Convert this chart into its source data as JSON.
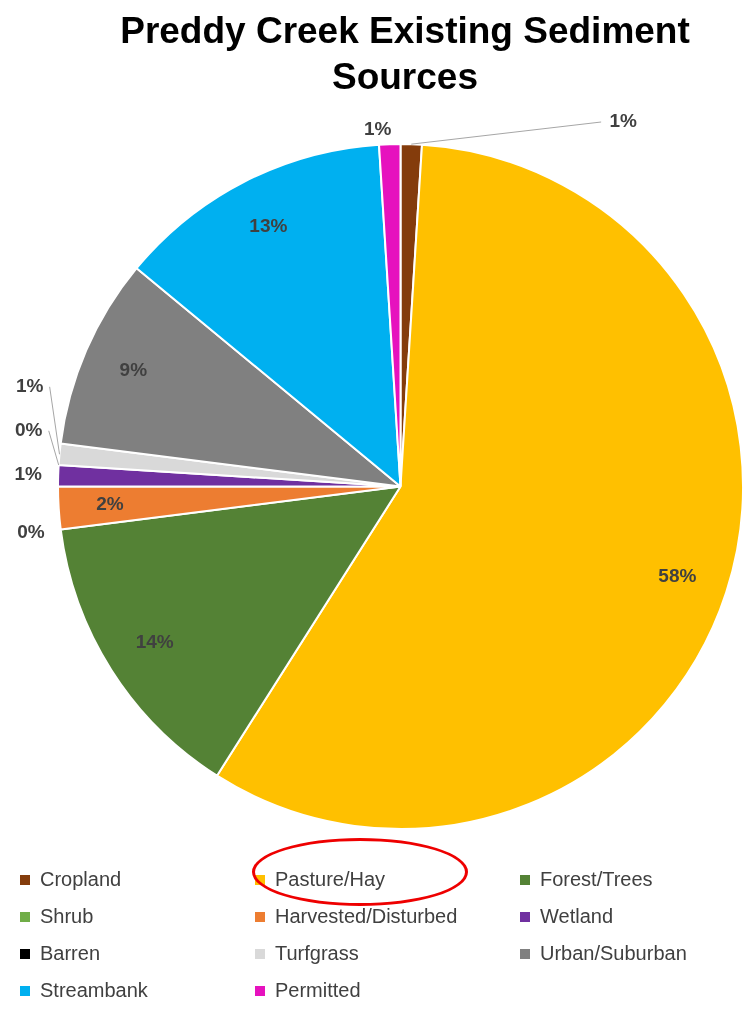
{
  "chart_data": {
    "type": "pie",
    "title": "Preddy Creek Existing Sediment Sources",
    "categories": [
      "Cropland",
      "Pasture/Hay",
      "Forest/Trees",
      "Shrub",
      "Harvested/Disturbed",
      "Wetland",
      "Barren",
      "Turfgrass",
      "Urban/Suburban",
      "Streambank",
      "Permitted"
    ],
    "values": [
      1,
      58,
      14,
      0,
      2,
      1,
      0,
      1,
      9,
      13,
      1
    ],
    "colors": [
      "#843c0c",
      "#ffc000",
      "#548235",
      "#70ad47",
      "#ed7d31",
      "#7030a0",
      "#000000",
      "#d9d9d9",
      "#808080",
      "#00b0f0",
      "#e612be"
    ],
    "value_labels": [
      "1%",
      "58%",
      "14%",
      "0%",
      "2%",
      "1%",
      "0%",
      "1%",
      "9%",
      "13%",
      "1%"
    ],
    "legend": "bottom"
  }
}
